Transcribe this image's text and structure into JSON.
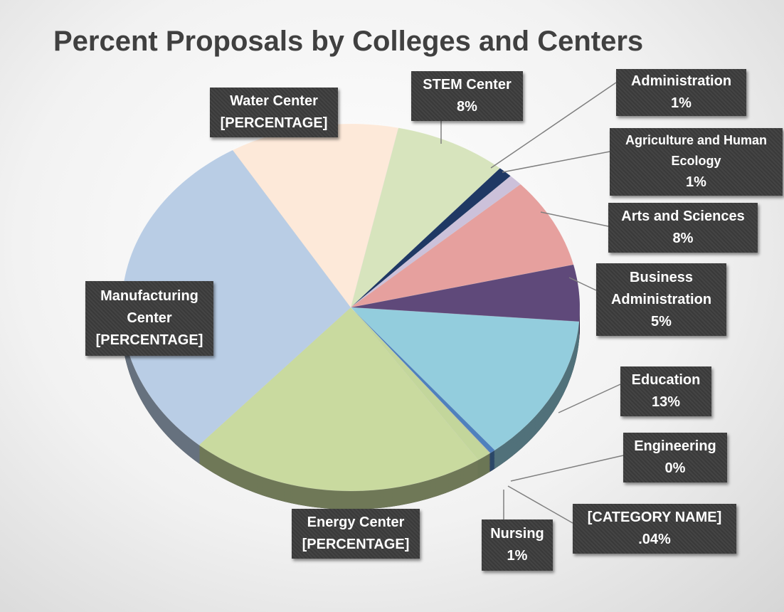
{
  "chart_data": {
    "type": "pie",
    "title": "Percent Proposals by Colleges and Centers",
    "categories": [
      "STEM Center",
      "Administration",
      "Agriculture and Human Ecology",
      "Arts and Sciences",
      "Business Administration",
      "Education",
      "Engineering",
      "[CATEGORY NAME]",
      "Nursing",
      "Energy Center",
      "Manufacturing Center",
      "Water Center"
    ],
    "values": [
      8,
      1,
      1,
      8,
      5,
      13,
      0.4,
      0.04,
      1,
      21,
      30,
      12
    ],
    "value_labels": [
      "8%",
      "1%",
      "1%",
      "8%",
      "5%",
      "13%",
      "0%",
      ".04%",
      "1%",
      "[PERCENTAGE]",
      "[PERCENTAGE]",
      "[PERCENTAGE]"
    ],
    "colors": [
      "#d7e4bd",
      "#1f3864",
      "#ccc1da",
      "#e6a09e",
      "#5f497a",
      "#93cddd",
      "#4f81bd",
      "#c4bd97",
      "#c3d69b",
      "#c9da9f",
      "#b9cde5",
      "#fde9d9"
    ]
  }
}
